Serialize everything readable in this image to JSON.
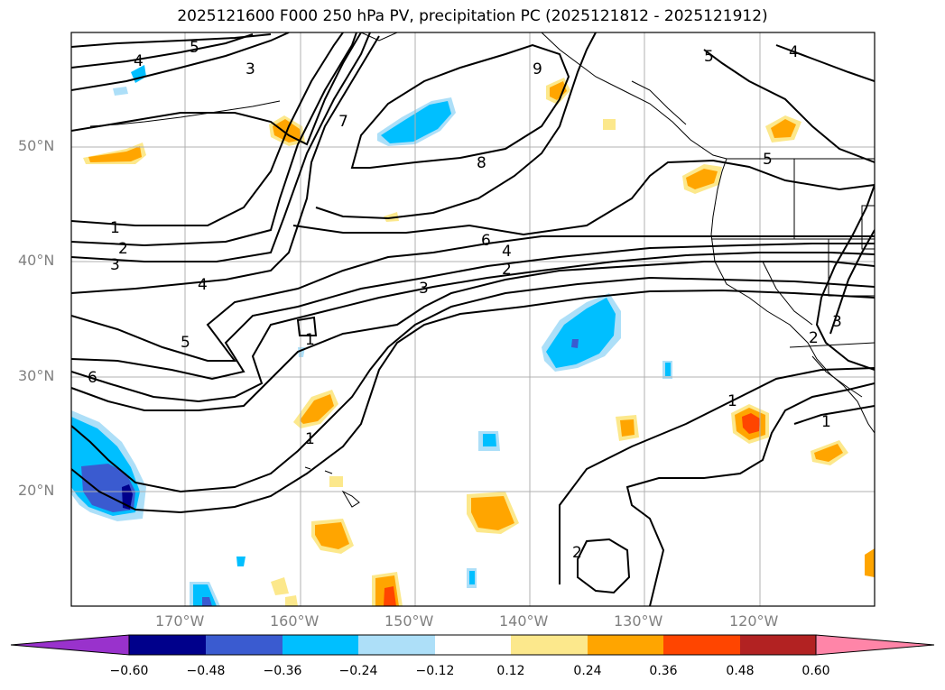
{
  "title": "2025121600 F000 250 hPa PV, precipitation PC (2025121812 - 2025121912)",
  "axes": {
    "lat_labels": [
      "50°N",
      "40°N",
      "30°N",
      "20°N"
    ],
    "lon_labels": [
      "170°W",
      "160°W",
      "150°W",
      "140°W",
      "130°W",
      "120°W"
    ]
  },
  "contour_labels": [
    {
      "id": "c5a",
      "text": "5"
    },
    {
      "id": "c4a",
      "text": "4"
    },
    {
      "id": "c3a",
      "text": "3"
    },
    {
      "id": "c7",
      "text": "7"
    },
    {
      "id": "c9",
      "text": "9"
    },
    {
      "id": "c8",
      "text": "8"
    },
    {
      "id": "c1a",
      "text": "1"
    },
    {
      "id": "c2a",
      "text": "2"
    },
    {
      "id": "c3b",
      "text": "3"
    },
    {
      "id": "c4b",
      "text": "4"
    },
    {
      "id": "c5b",
      "text": "5"
    },
    {
      "id": "c6a",
      "text": "6"
    },
    {
      "id": "c1b",
      "text": "1"
    },
    {
      "id": "c1c",
      "text": "1"
    },
    {
      "id": "c3c",
      "text": "3"
    },
    {
      "id": "c2b",
      "text": "2"
    },
    {
      "id": "c4c",
      "text": "4"
    },
    {
      "id": "c6b",
      "text": "6"
    },
    {
      "id": "c5c",
      "text": "5"
    },
    {
      "id": "c4d",
      "text": "4"
    },
    {
      "id": "c5d",
      "text": "5"
    },
    {
      "id": "c1d",
      "text": "1"
    },
    {
      "id": "c1e",
      "text": "1"
    },
    {
      "id": "c2c",
      "text": "2"
    },
    {
      "id": "c3d",
      "text": "3"
    },
    {
      "id": "c2d",
      "text": "2"
    }
  ],
  "colorbar": {
    "ticks": [
      "−0.60",
      "−0.48",
      "−0.36",
      "−0.24",
      "−0.12",
      "0.12",
      "0.24",
      "0.36",
      "0.48",
      "0.60"
    ],
    "colors": [
      "#9932CC",
      "#00008B",
      "#3A5BD0",
      "#00BFFF",
      "#ADDFF8",
      "#FFFFFF",
      "#FCE88C",
      "#FFA500",
      "#FF4500",
      "#B22222",
      "#FF85A8"
    ]
  },
  "colors": {
    "dark_blue": "#00008B",
    "mid_blue": "#3A5BD0",
    "sky_blue": "#00BFFF",
    "light_blue": "#ADDFF8",
    "light_yellow": "#FCE88C",
    "orange": "#FFA500",
    "red_orange": "#FF4500"
  }
}
